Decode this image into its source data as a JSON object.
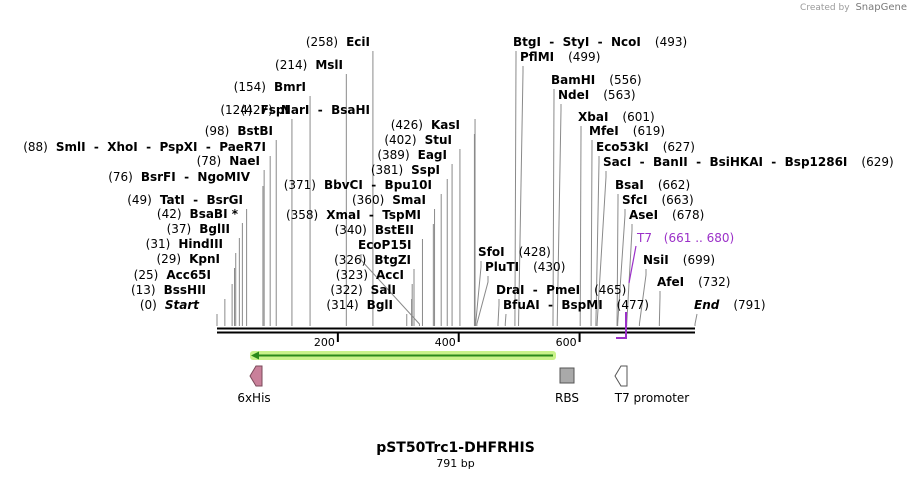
{
  "brand": {
    "created_by": "Created by",
    "app": "SnapGene"
  },
  "plasmid": {
    "name": "pST50Trc1-DHFRHIS",
    "length_label": "791 bp",
    "length": 791
  },
  "axis": {
    "ticks": [
      200,
      400,
      600
    ]
  },
  "sites": [
    {
      "label": "(258)",
      "names": [
        "EciI"
      ],
      "pos": 258
    },
    {
      "label": "(214)",
      "names": [
        "MslI"
      ],
      "pos": 214
    },
    {
      "label": "(154)",
      "names": [
        "BmrI"
      ],
      "pos": 154
    },
    {
      "label": "(124)",
      "names": [
        "FspI"
      ],
      "pos": 124
    },
    {
      "label": "(98)",
      "names": [
        "BstBI"
      ],
      "pos": 98
    },
    {
      "label": "(88)",
      "names": [
        "SmlI",
        "XhoI",
        "PspXI",
        "PaeR7I"
      ],
      "pos": 88
    },
    {
      "label": "(78)",
      "names": [
        "NaeI"
      ],
      "pos": 78
    },
    {
      "label": "(76)",
      "names": [
        "BsrFI",
        "NgoMIV"
      ],
      "pos": 76
    },
    {
      "label": "(49)",
      "names": [
        "TatI",
        "BsrGI"
      ],
      "pos": 49
    },
    {
      "label": "(42)",
      "names": [
        "BsaBI *"
      ],
      "pos": 42
    },
    {
      "label": "(37)",
      "names": [
        "BglII"
      ],
      "pos": 37
    },
    {
      "label": "(31)",
      "names": [
        "HindIII"
      ],
      "pos": 31
    },
    {
      "label": "(29)",
      "names": [
        "KpnI"
      ],
      "pos": 29
    },
    {
      "label": "(25)",
      "names": [
        "Acc65I"
      ],
      "pos": 25
    },
    {
      "label": "(13)",
      "names": [
        "BssHII"
      ],
      "pos": 13
    },
    {
      "label": "(0)",
      "names": [
        "Start"
      ],
      "pos": 0,
      "italic": true
    },
    {
      "label": "(427)",
      "names": [
        "NarI",
        "BsaHI"
      ],
      "pos": 427
    },
    {
      "label": "(426)",
      "names": [
        "KasI"
      ],
      "pos": 426
    },
    {
      "label": "(402)",
      "names": [
        "StuI"
      ],
      "pos": 402
    },
    {
      "label": "(389)",
      "names": [
        "EagI"
      ],
      "pos": 389
    },
    {
      "label": "(381)",
      "names": [
        "SspI"
      ],
      "pos": 381
    },
    {
      "label": "(371)",
      "names": [
        "BbvCI",
        "Bpu10I"
      ],
      "pos": 371
    },
    {
      "label": "(360)",
      "names": [
        "SmaI"
      ],
      "pos": 360
    },
    {
      "label": "(358)",
      "names": [
        "XmaI",
        "TspMI"
      ],
      "pos": 358
    },
    {
      "label": "(340)",
      "names": [
        "BstEII"
      ],
      "pos": 340
    },
    {
      "label": "",
      "names": [
        "EcoP15I"
      ],
      "pos": 335
    },
    {
      "label": "(326)",
      "names": [
        "BtgZI"
      ],
      "pos": 326
    },
    {
      "label": "(323)",
      "names": [
        "AccI"
      ],
      "pos": 323
    },
    {
      "label": "(322)",
      "names": [
        "SalI"
      ],
      "pos": 322
    },
    {
      "label": "(314)",
      "names": [
        "BglI"
      ],
      "pos": 314
    },
    {
      "label": "(493)",
      "names": [
        "BtgI",
        "StyI",
        "NcoI"
      ],
      "pos": 493
    },
    {
      "label": "(499)",
      "names": [
        "PflMI"
      ],
      "pos": 499
    },
    {
      "label": "(556)",
      "names": [
        "BamHI"
      ],
      "pos": 556
    },
    {
      "label": "(563)",
      "names": [
        "NdeI"
      ],
      "pos": 563
    },
    {
      "label": "(601)",
      "names": [
        "XbaI"
      ],
      "pos": 601
    },
    {
      "label": "(619)",
      "names": [
        "MfeI"
      ],
      "pos": 619
    },
    {
      "label": "(627)",
      "names": [
        "Eco53kI"
      ],
      "pos": 627
    },
    {
      "label": "(629)",
      "names": [
        "SacI",
        "BanII",
        "BsiHKAI",
        "Bsp1286I"
      ],
      "pos": 629
    },
    {
      "label": "(662)",
      "names": [
        "BsaI"
      ],
      "pos": 662
    },
    {
      "label": "(663)",
      "names": [
        "SfcI"
      ],
      "pos": 663
    },
    {
      "label": "(678)",
      "names": [
        "AseI"
      ],
      "pos": 678
    },
    {
      "label": "(428)",
      "names": [
        "SfoI"
      ],
      "pos": 428
    },
    {
      "label": "(430)",
      "names": [
        "PluTI"
      ],
      "pos": 430
    },
    {
      "label": "(465)",
      "names": [
        "DraI",
        "PmeI"
      ],
      "pos": 465
    },
    {
      "label": "(477)",
      "names": [
        "BfuAI",
        "BspMI"
      ],
      "pos": 477
    },
    {
      "label": "(699)",
      "names": [
        "NsiI"
      ],
      "pos": 699
    },
    {
      "label": "(732)",
      "names": [
        "AfeI"
      ],
      "pos": 732
    },
    {
      "label": "(791)",
      "names": [
        "End"
      ],
      "pos": 791,
      "italic": true
    }
  ],
  "primer": {
    "label": "T7",
    "range": "(661 .. 680)",
    "color": "#9b30c8"
  },
  "features": [
    {
      "name": "6xHis",
      "color": "#c9809a",
      "shape": "arrow-left"
    },
    {
      "name": "RBS",
      "color": "#a9a9a9",
      "shape": "box"
    },
    {
      "name": "T7 promoter",
      "color": "#ffffff",
      "shape": "arrow-left"
    }
  ],
  "orf": {
    "color": "#2b8a1a",
    "highlight": "#c9f28a"
  }
}
